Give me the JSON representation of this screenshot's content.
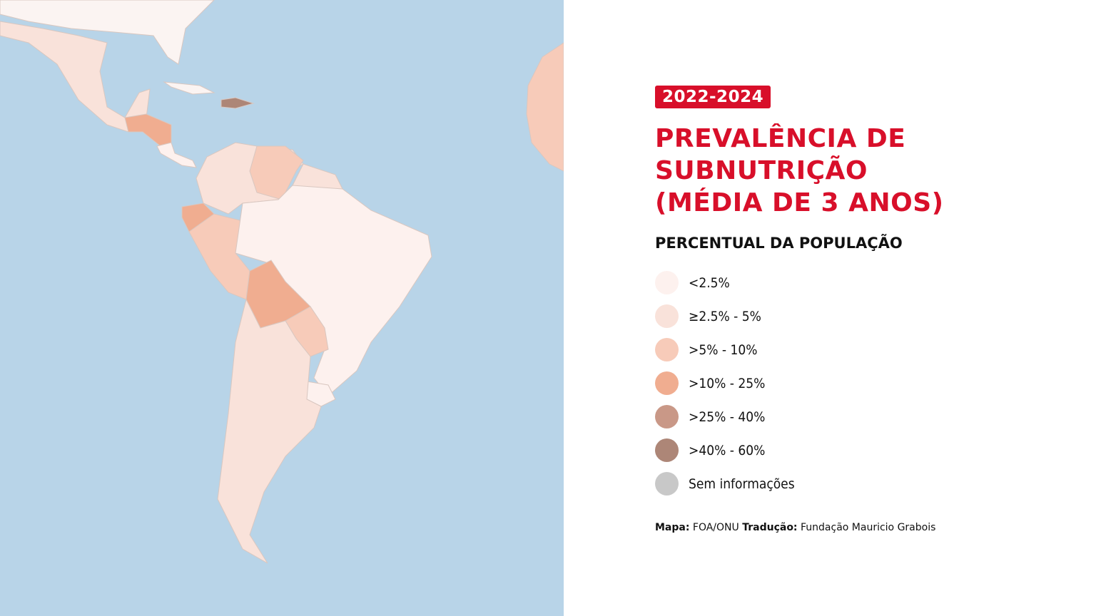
{
  "badge": "2022-2024",
  "title": {
    "lines": [
      "PREVALÊNCIA DE",
      "SUBNUTRIÇÃO",
      "(MÉDIA DE 3 ANOS)"
    ]
  },
  "legend": {
    "title": "PERCENTUAL DA POPULAÇÃO",
    "items": [
      {
        "label": "<2.5%",
        "color": "#fdf1ee"
      },
      {
        "label": "≥2.5% - 5%",
        "color": "#f9e2da"
      },
      {
        "label": ">5% - 10%",
        "color": "#f7cbb9"
      },
      {
        "label": ">10% - 25%",
        "color": "#f0ad90"
      },
      {
        "label": ">25% - 40%",
        "color": "#c99887"
      },
      {
        "label": ">40% - 60%",
        "color": "#ad8677"
      },
      {
        "label": "Sem informações",
        "color": "#c8c8c8"
      }
    ]
  },
  "source": {
    "map_label": "Mapa:",
    "map_value": "FOA/ONU",
    "translation_label": "Tradução:",
    "translation_value": "Fundação Mauricio Grabois"
  }
}
